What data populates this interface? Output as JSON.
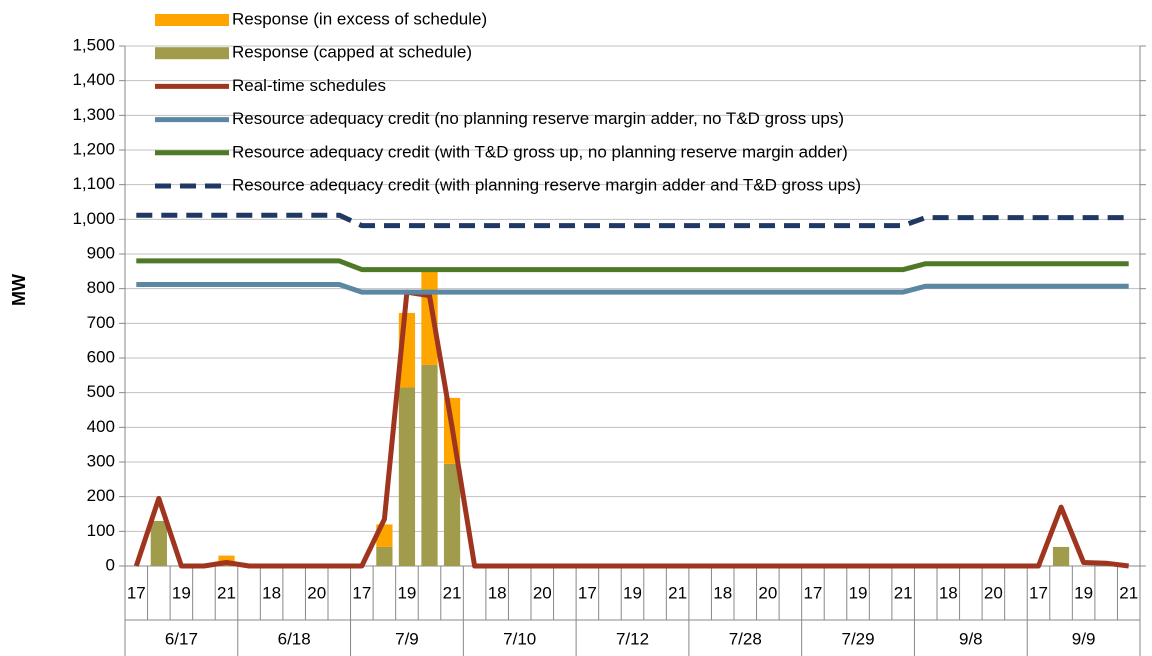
{
  "chart_data": {
    "type": "combo",
    "y_label": "MW",
    "ylim": [
      0,
      1500
    ],
    "yticks": [
      0,
      100,
      200,
      300,
      400,
      500,
      600,
      700,
      800,
      900,
      {
        "value": 1000,
        "label": "1,000"
      },
      {
        "value": 1100,
        "label": "1,100"
      },
      {
        "value": 1200,
        "label": "1,200"
      },
      {
        "value": 1300,
        "label": "1,300"
      },
      {
        "value": 1400,
        "label": "1,400"
      },
      {
        "value": 1500,
        "label": "1,500"
      }
    ],
    "grid": true,
    "groups": [
      "6/17",
      "6/18",
      "7/9",
      "7/10",
      "7/12",
      "7/28",
      "7/29",
      "9/8",
      "9/9"
    ],
    "categories": [
      "17",
      null,
      "19",
      null,
      "21",
      null,
      "18",
      null,
      "20",
      null,
      "17",
      null,
      "19",
      null,
      "21",
      null,
      "18",
      null,
      "20",
      null,
      "17",
      null,
      "19",
      null,
      "21",
      null,
      "18",
      null,
      "20",
      null,
      "17",
      null,
      "19",
      null,
      "21",
      null,
      "18",
      null,
      "20",
      null,
      "17",
      null,
      "19",
      null,
      "21"
    ],
    "series": [
      {
        "name": "Response (in excess of schedule)",
        "type": "bar",
        "color": "#ffa500",
        "values": [
          0,
          0,
          0,
          0,
          20,
          0,
          0,
          0,
          0,
          0,
          0,
          65,
          215,
          270,
          190,
          0,
          0,
          0,
          0,
          0,
          0,
          0,
          0,
          0,
          0,
          0,
          0,
          0,
          0,
          0,
          0,
          0,
          0,
          0,
          0,
          0,
          0,
          0,
          0,
          0,
          0,
          0,
          0,
          0,
          0
        ]
      },
      {
        "name": "Response (capped at schedule)",
        "type": "bar",
        "color": "#a09c4c",
        "values": [
          0,
          130,
          0,
          0,
          10,
          0,
          0,
          0,
          0,
          0,
          0,
          55,
          515,
          580,
          295,
          0,
          0,
          0,
          0,
          0,
          0,
          0,
          0,
          0,
          0,
          0,
          0,
          0,
          0,
          0,
          0,
          0,
          0,
          0,
          0,
          0,
          0,
          0,
          0,
          0,
          0,
          55,
          0,
          0,
          0
        ]
      },
      {
        "name": "Real-time schedules",
        "type": "line",
        "color": "#a0351f",
        "values": [
          0,
          195,
          0,
          0,
          10,
          0,
          0,
          0,
          0,
          0,
          0,
          135,
          790,
          780,
          400,
          0,
          0,
          0,
          0,
          0,
          0,
          0,
          0,
          0,
          0,
          0,
          0,
          0,
          0,
          0,
          0,
          0,
          0,
          0,
          0,
          0,
          0,
          0,
          0,
          0,
          0,
          170,
          10,
          8,
          0
        ]
      },
      {
        "name": "Resource adequacy credit (no planning reserve margin adder, no T&D gross ups)",
        "type": "line",
        "color": "#5b87a3",
        "values": [
          812,
          812,
          812,
          812,
          812,
          812,
          812,
          812,
          812,
          812,
          790,
          790,
          790,
          790,
          790,
          790,
          790,
          790,
          790,
          790,
          790,
          790,
          790,
          790,
          790,
          790,
          790,
          790,
          790,
          790,
          790,
          790,
          790,
          790,
          790,
          807,
          807,
          807,
          807,
          807,
          807,
          807,
          807,
          807,
          807
        ]
      },
      {
        "name": "Resource adequacy credit (with T&D gross up, no planning reserve margin adder)",
        "type": "line",
        "color": "#4e7a27",
        "values": [
          880,
          880,
          880,
          880,
          880,
          880,
          880,
          880,
          880,
          880,
          855,
          855,
          855,
          855,
          855,
          855,
          855,
          855,
          855,
          855,
          855,
          855,
          855,
          855,
          855,
          855,
          855,
          855,
          855,
          855,
          855,
          855,
          855,
          855,
          855,
          872,
          872,
          872,
          872,
          872,
          872,
          872,
          872,
          872,
          872
        ]
      },
      {
        "name": "Resource adequacy credit (with planning reserve margin adder and T&D gross ups)",
        "type": "line",
        "dashed": true,
        "color": "#1f3864",
        "values": [
          1012,
          1012,
          1012,
          1012,
          1012,
          1012,
          1012,
          1012,
          1012,
          1012,
          982,
          982,
          982,
          982,
          982,
          982,
          982,
          982,
          982,
          982,
          982,
          982,
          982,
          982,
          982,
          982,
          982,
          982,
          982,
          982,
          982,
          982,
          982,
          982,
          982,
          1005,
          1005,
          1005,
          1005,
          1005,
          1005,
          1005,
          1005,
          1005,
          1005
        ]
      }
    ]
  }
}
